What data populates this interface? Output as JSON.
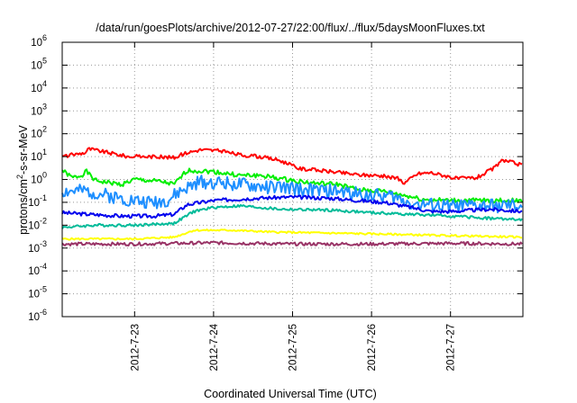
{
  "chart_data": {
    "type": "line",
    "title": "/data/run/goesPlots/archive/2012-07-27/22:00/flux/../flux/5daysMoonFluxes.txt",
    "xlabel": "Coordinated Universal Time (UTC)",
    "ylabel": "protons/cm²-s-sr-MeV",
    "ylabel_parts": {
      "before": "protons/cm",
      "sup": "2",
      "after": "-s-sr-MeV"
    },
    "y_scale": "log",
    "ylim": [
      1e-06,
      1000000.0
    ],
    "x_range": [
      "2012-07-22T02:00",
      "2012-07-27T22:00"
    ],
    "grid": true,
    "grid_style": "dotted",
    "x_ticks": [
      {
        "value": "2012-07-23T00:00",
        "label": "2012-7-23"
      },
      {
        "value": "2012-07-24T00:00",
        "label": "2012-7-24"
      },
      {
        "value": "2012-07-25T00:00",
        "label": "2012-7-25"
      },
      {
        "value": "2012-07-26T00:00",
        "label": "2012-7-26"
      },
      {
        "value": "2012-07-27T00:00",
        "label": "2012-7-27"
      }
    ],
    "y_ticks": [
      {
        "value": 1e-06,
        "base": "10",
        "exp": "-6"
      },
      {
        "value": 1e-05,
        "base": "10",
        "exp": "-5"
      },
      {
        "value": 0.0001,
        "base": "10",
        "exp": "-4"
      },
      {
        "value": 0.001,
        "base": "10",
        "exp": "-3"
      },
      {
        "value": 0.01,
        "base": "10",
        "exp": "-2"
      },
      {
        "value": 0.1,
        "base": "10",
        "exp": "-1"
      },
      {
        "value": 1.0,
        "base": "10",
        "exp": "0"
      },
      {
        "value": 10.0,
        "base": "10",
        "exp": "1"
      },
      {
        "value": 100.0,
        "base": "10",
        "exp": "2"
      },
      {
        "value": 1000.0,
        "base": "10",
        "exp": "3"
      },
      {
        "value": 10000.0,
        "base": "10",
        "exp": "4"
      },
      {
        "value": 100000.0,
        "base": "10",
        "exp": "5"
      },
      {
        "value": 1000000.0,
        "base": "10",
        "exp": "6"
      }
    ],
    "series": [
      {
        "color": "#ff0000",
        "noise": 0.08,
        "points": [
          [
            "2012-07-22T02:00",
            10
          ],
          [
            "2012-07-22T09:00",
            15
          ],
          [
            "2012-07-22T10:00",
            22
          ],
          [
            "2012-07-22T16:00",
            15
          ],
          [
            "2012-07-22T22:00",
            10
          ],
          [
            "2012-07-23T06:00",
            10
          ],
          [
            "2012-07-23T12:00",
            9
          ],
          [
            "2012-07-23T16:00",
            15
          ],
          [
            "2012-07-23T20:00",
            20
          ],
          [
            "2012-07-24T02:00",
            18
          ],
          [
            "2012-07-24T08:00",
            12
          ],
          [
            "2012-07-24T14:00",
            10
          ],
          [
            "2012-07-24T20:00",
            7
          ],
          [
            "2012-07-25T02:00",
            3
          ],
          [
            "2012-07-25T12:00",
            2.2
          ],
          [
            "2012-07-25T20:00",
            1.6
          ],
          [
            "2012-07-26T02:00",
            1.5
          ],
          [
            "2012-07-26T08:00",
            1.1
          ],
          [
            "2012-07-26T10:00",
            0.7
          ],
          [
            "2012-07-26T14:00",
            1.8
          ],
          [
            "2012-07-26T18:00",
            2
          ],
          [
            "2012-07-26T22:00",
            1.5
          ],
          [
            "2012-07-27T02:00",
            1.1
          ],
          [
            "2012-07-27T08:00",
            1.2
          ],
          [
            "2012-07-27T13:00",
            3
          ],
          [
            "2012-07-27T16:00",
            7
          ],
          [
            "2012-07-27T20:00",
            5
          ],
          [
            "2012-07-27T22:00",
            4
          ]
        ]
      },
      {
        "color": "#00ee00",
        "noise": 0.1,
        "points": [
          [
            "2012-07-22T02:00",
            2.5
          ],
          [
            "2012-07-22T05:00",
            1.2
          ],
          [
            "2012-07-22T08:00",
            1.5
          ],
          [
            "2012-07-22T09:00",
            2.5
          ],
          [
            "2012-07-22T12:00",
            0.9
          ],
          [
            "2012-07-22T20:00",
            0.6
          ],
          [
            "2012-07-23T00:00",
            1
          ],
          [
            "2012-07-23T08:00",
            0.8
          ],
          [
            "2012-07-23T12:00",
            0.6
          ],
          [
            "2012-07-23T16:00",
            2.5
          ],
          [
            "2012-07-24T00:00",
            2.2
          ],
          [
            "2012-07-24T08:00",
            1.5
          ],
          [
            "2012-07-24T14:00",
            1.5
          ],
          [
            "2012-07-24T22:00",
            1.0
          ],
          [
            "2012-07-25T06:00",
            0.7
          ],
          [
            "2012-07-25T14:00",
            0.6
          ],
          [
            "2012-07-25T20:00",
            0.35
          ],
          [
            "2012-07-26T04:00",
            0.3
          ],
          [
            "2012-07-26T10:00",
            0.2
          ],
          [
            "2012-07-26T16:00",
            0.13
          ],
          [
            "2012-07-27T00:00",
            0.12
          ],
          [
            "2012-07-27T10:00",
            0.12
          ],
          [
            "2012-07-27T22:00",
            0.12
          ]
        ]
      },
      {
        "color": "#1e8fff",
        "noise": 0.3,
        "points": [
          [
            "2012-07-22T02:00",
            0.3
          ],
          [
            "2012-07-22T10:00",
            0.3
          ],
          [
            "2012-07-22T20:00",
            0.15
          ],
          [
            "2012-07-23T04:00",
            0.1
          ],
          [
            "2012-07-23T10:00",
            0.12
          ],
          [
            "2012-07-23T14:00",
            0.3
          ],
          [
            "2012-07-23T20:00",
            0.8
          ],
          [
            "2012-07-24T04:00",
            0.7
          ],
          [
            "2012-07-24T12:00",
            0.5
          ],
          [
            "2012-07-24T20:00",
            0.45
          ],
          [
            "2012-07-25T04:00",
            0.35
          ],
          [
            "2012-07-25T14:00",
            0.3
          ],
          [
            "2012-07-25T22:00",
            0.22
          ],
          [
            "2012-07-26T06:00",
            0.18
          ],
          [
            "2012-07-26T14:00",
            0.08
          ],
          [
            "2012-07-26T20:00",
            0.07
          ],
          [
            "2012-07-27T06:00",
            0.07
          ],
          [
            "2012-07-27T14:00",
            0.07
          ],
          [
            "2012-07-27T22:00",
            0.07
          ]
        ]
      },
      {
        "color": "#0000ee",
        "noise": 0.08,
        "points": [
          [
            "2012-07-22T02:00",
            0.035
          ],
          [
            "2012-07-22T10:00",
            0.03
          ],
          [
            "2012-07-22T20:00",
            0.025
          ],
          [
            "2012-07-23T06:00",
            0.025
          ],
          [
            "2012-07-23T12:00",
            0.03
          ],
          [
            "2012-07-23T16:00",
            0.08
          ],
          [
            "2012-07-24T00:00",
            0.12
          ],
          [
            "2012-07-24T12:00",
            0.15
          ],
          [
            "2012-07-25T00:00",
            0.17
          ],
          [
            "2012-07-25T12:00",
            0.15
          ],
          [
            "2012-07-25T20:00",
            0.12
          ],
          [
            "2012-07-26T04:00",
            0.1
          ],
          [
            "2012-07-26T12:00",
            0.06
          ],
          [
            "2012-07-26T18:00",
            0.04
          ],
          [
            "2012-07-27T00:00",
            0.04
          ],
          [
            "2012-07-27T12:00",
            0.05
          ],
          [
            "2012-07-27T22:00",
            0.04
          ]
        ]
      },
      {
        "color": "#00bb99",
        "noise": 0.06,
        "points": [
          [
            "2012-07-22T02:00",
            0.008
          ],
          [
            "2012-07-22T12:00",
            0.01
          ],
          [
            "2012-07-23T00:00",
            0.01
          ],
          [
            "2012-07-23T12:00",
            0.012
          ],
          [
            "2012-07-23T18:00",
            0.04
          ],
          [
            "2012-07-24T00:00",
            0.06
          ],
          [
            "2012-07-24T08:00",
            0.07
          ],
          [
            "2012-07-24T20:00",
            0.05
          ],
          [
            "2012-07-25T12:00",
            0.045
          ],
          [
            "2012-07-26T00:00",
            0.035
          ],
          [
            "2012-07-26T12:00",
            0.03
          ],
          [
            "2012-07-27T00:00",
            0.025
          ],
          [
            "2012-07-27T12:00",
            0.02
          ],
          [
            "2012-07-27T22:00",
            0.017
          ]
        ]
      },
      {
        "color": "#ffff00",
        "noise": 0.04,
        "points": [
          [
            "2012-07-22T02:00",
            0.0025
          ],
          [
            "2012-07-23T00:00",
            0.0025
          ],
          [
            "2012-07-23T12:00",
            0.003
          ],
          [
            "2012-07-23T18:00",
            0.006
          ],
          [
            "2012-07-24T06:00",
            0.006
          ],
          [
            "2012-07-24T18:00",
            0.005
          ],
          [
            "2012-07-25T12:00",
            0.0045
          ],
          [
            "2012-07-26T06:00",
            0.004
          ],
          [
            "2012-07-27T00:00",
            0.0035
          ],
          [
            "2012-07-27T22:00",
            0.003
          ]
        ]
      },
      {
        "color": "#993366",
        "noise": 0.07,
        "points": [
          [
            "2012-07-22T02:00",
            0.0015
          ],
          [
            "2012-07-23T00:00",
            0.0015
          ],
          [
            "2012-07-24T00:00",
            0.0017
          ],
          [
            "2012-07-25T00:00",
            0.0015
          ],
          [
            "2012-07-26T00:00",
            0.0015
          ],
          [
            "2012-07-27T00:00",
            0.0016
          ],
          [
            "2012-07-27T22:00",
            0.0015
          ]
        ]
      }
    ]
  }
}
